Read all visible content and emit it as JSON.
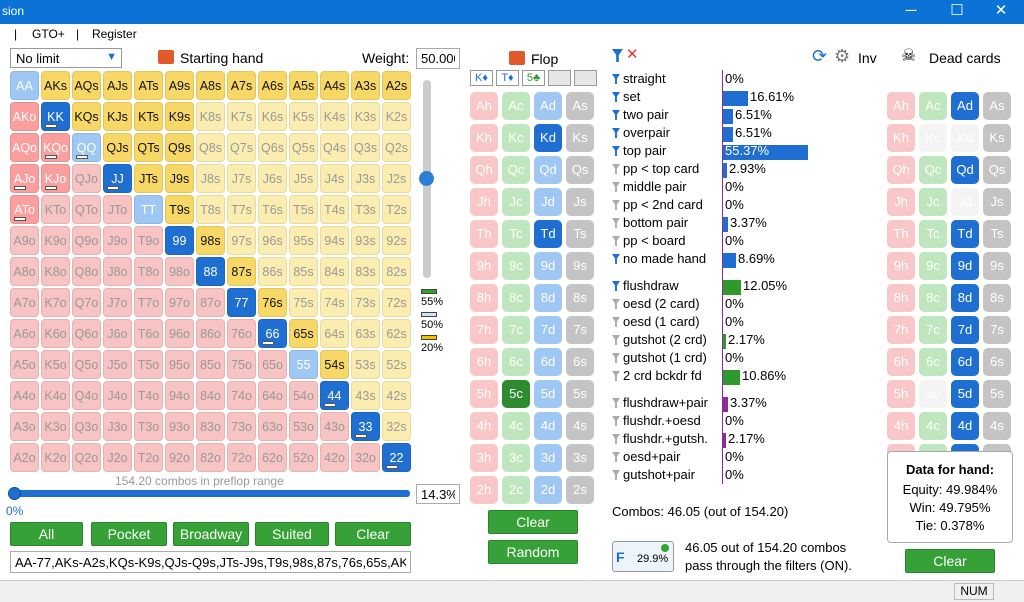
{
  "window": {
    "title_fragment": "sion",
    "minimize": "─",
    "maximize": "☐",
    "close": "✕"
  },
  "menu": {
    "items": [
      "|",
      "GTO+",
      "|",
      "Register"
    ]
  },
  "range_panel": {
    "game_type": "No limit",
    "starting_hand_label": "Starting hand",
    "weight_label": "Weight:",
    "weight_value": "50.000",
    "slider_labels": [
      "55%",
      "50%",
      "20%"
    ],
    "combos_caption": "154.20 combos in preflop range",
    "range_pct": "14.3%",
    "slider_left_value": "0%",
    "buttons": [
      "All",
      "Pocket",
      "Broadway",
      "Suited",
      "Clear"
    ],
    "range_text": "AA-77,AKs-A2s,KQs-K9s,QJs-Q9s,JTs-J9s,T9s,98s,87s,76s,65s,AKo-",
    "ranks": [
      "A",
      "K",
      "Q",
      "J",
      "T",
      "9",
      "8",
      "7",
      "6",
      "5",
      "4",
      "3",
      "2"
    ],
    "styles": [
      [
        "sell",
        "yl",
        "yl",
        "yl",
        "yl",
        "yl",
        "yl",
        "yl",
        "yl",
        "yl",
        "yl",
        "yl",
        "yl"
      ],
      [
        "selp",
        "sel",
        "yl",
        "yl",
        "yl",
        "yl",
        "yp",
        "yp",
        "yp",
        "yp",
        "yp",
        "yp",
        "yp"
      ],
      [
        "selp",
        "selp",
        "sell",
        "yl",
        "yl",
        "yl",
        "yp",
        "yp",
        "yp",
        "yp",
        "yp",
        "yp",
        "yp"
      ],
      [
        "selp",
        "selp",
        "pk",
        "sel",
        "yl",
        "yl",
        "yp",
        "yp",
        "yp",
        "yp",
        "yp",
        "yp",
        "yp"
      ],
      [
        "selp",
        "pk",
        "pk",
        "pk",
        "sell",
        "yl",
        "yp",
        "yp",
        "yp",
        "yp",
        "yp",
        "yp",
        "yp"
      ],
      [
        "pk",
        "pk",
        "pk",
        "pk",
        "pk",
        "sel",
        "yl",
        "yp",
        "yp",
        "yp",
        "yp",
        "yp",
        "yp"
      ],
      [
        "pk",
        "pk",
        "pk",
        "pk",
        "pk",
        "pk",
        "sel",
        "yl",
        "yp",
        "yp",
        "yp",
        "yp",
        "yp"
      ],
      [
        "pk",
        "pk",
        "pk",
        "pk",
        "pk",
        "pk",
        "pk",
        "sel",
        "yl",
        "yp",
        "yp",
        "yp",
        "yp"
      ],
      [
        "pk",
        "pk",
        "pk",
        "pk",
        "pk",
        "pk",
        "pk",
        "pk",
        "sel",
        "yl",
        "yp",
        "yp",
        "yp"
      ],
      [
        "pk",
        "pk",
        "pk",
        "pk",
        "pk",
        "pk",
        "pk",
        "pk",
        "pk",
        "sell",
        "yl",
        "yp",
        "yp"
      ],
      [
        "pk",
        "pk",
        "pk",
        "pk",
        "pk",
        "pk",
        "pk",
        "pk",
        "pk",
        "pk",
        "sel",
        "yp",
        "yp"
      ],
      [
        "pk",
        "pk",
        "pk",
        "pk",
        "pk",
        "pk",
        "pk",
        "pk",
        "pk",
        "pk",
        "pk",
        "sel",
        "yp"
      ],
      [
        "pk",
        "pk",
        "pk",
        "pk",
        "pk",
        "pk",
        "pk",
        "pk",
        "pk",
        "pk",
        "pk",
        "pk",
        "sel"
      ]
    ],
    "weight_indicators": [
      "KK",
      "QQ",
      "JJ",
      "KQo",
      "AJo",
      "KJo",
      "ATo",
      "66",
      "44",
      "33",
      "22"
    ]
  },
  "flop_panel": {
    "title": "Flop",
    "board_slots": [
      "K♦",
      "T♦",
      "5♣",
      "",
      ""
    ],
    "ranks": [
      "A",
      "K",
      "Q",
      "J",
      "T",
      "9",
      "8",
      "7",
      "6",
      "5",
      "4",
      "3",
      "2"
    ],
    "suits": [
      "h",
      "c",
      "d",
      "s"
    ],
    "selected": [
      "Kd",
      "Td",
      "5c"
    ],
    "clear": "Clear",
    "random": "Random"
  },
  "filters": {
    "inv_label": "Inv",
    "rows": [
      {
        "label": "straight",
        "value": "0%",
        "pct": 0,
        "color": "#1e6fd1",
        "active": true
      },
      {
        "label": "set",
        "value": "16.61%",
        "pct": 16.61,
        "color": "#1e6fd1",
        "active": true
      },
      {
        "label": "two pair",
        "value": "6.51%",
        "pct": 6.51,
        "color": "#1e6fd1",
        "active": true
      },
      {
        "label": "overpair",
        "value": "6.51%",
        "pct": 6.51,
        "color": "#1e6fd1",
        "active": true
      },
      {
        "label": "top pair",
        "value": "55.37%",
        "pct": 55.37,
        "color": "#1e6fd1",
        "active": true
      },
      {
        "label": "pp < top card",
        "value": "2.93%",
        "pct": 2.93,
        "color": "#1e6fd1",
        "active": false,
        "gear": true
      },
      {
        "label": "middle pair",
        "value": "0%",
        "pct": 0,
        "color": "#1e6fd1",
        "active": false
      },
      {
        "label": "pp < 2nd card",
        "value": "0%",
        "pct": 0,
        "color": "#1e6fd1",
        "active": false
      },
      {
        "label": "bottom pair",
        "value": "3.37%",
        "pct": 3.37,
        "color": "#1e6fd1",
        "active": false
      },
      {
        "label": "pp < board",
        "value": "0%",
        "pct": 0,
        "color": "#1e6fd1",
        "active": false
      },
      {
        "label": "no made hand",
        "value": "8.69%",
        "pct": 8.69,
        "color": "#1e6fd1",
        "active": true
      },
      {
        "label": "flushdraw",
        "value": "12.05%",
        "pct": 12.05,
        "color": "#2e9a2e",
        "active": true
      },
      {
        "label": "oesd (2 card)",
        "value": "0%",
        "pct": 0,
        "color": "#2e9a2e",
        "active": false
      },
      {
        "label": "oesd (1 card)",
        "value": "0%",
        "pct": 0,
        "color": "#2e9a2e",
        "active": false
      },
      {
        "label": "gutshot (2 crd)",
        "value": "2.17%",
        "pct": 2.17,
        "color": "#2e9a2e",
        "active": false
      },
      {
        "label": "gutshot (1 crd)",
        "value": "0%",
        "pct": 0,
        "color": "#2e9a2e",
        "active": false
      },
      {
        "label": "2 crd bckdr fd",
        "value": "10.86%",
        "pct": 10.86,
        "color": "#2e9a2e",
        "active": false
      },
      {
        "label": "flushdraw+pair",
        "value": "3.37%",
        "pct": 3.37,
        "color": "#8b2c9a",
        "active": false
      },
      {
        "label": "flushdr.+oesd",
        "value": "0%",
        "pct": 0,
        "color": "#8b2c9a",
        "active": false
      },
      {
        "label": "flushdr.+gutsh.",
        "value": "2.17%",
        "pct": 2.17,
        "color": "#8b2c9a",
        "active": false
      },
      {
        "label": "oesd+pair",
        "value": "0%",
        "pct": 0,
        "color": "#8b2c9a",
        "active": false
      },
      {
        "label": "gutshot+pair",
        "value": "0%",
        "pct": 0,
        "color": "#8b2c9a",
        "active": false
      }
    ],
    "combos_text": "Combos: 46.05 (out of 154.20)",
    "badge_pct": "29.9%",
    "pass_line1": "46.05 out of 154.20 combos",
    "pass_line2": "pass through the filters (ON)."
  },
  "dead_cards": {
    "title": "Dead cards",
    "selected": [
      "Ad",
      "Qd",
      "Td",
      "9d",
      "8d",
      "7d",
      "6d",
      "5d",
      "4d",
      "3d",
      "2d"
    ],
    "faded": [
      "Kd",
      "Kc",
      "Qd",
      "Jd",
      "Td",
      "5c"
    ],
    "data_title": "Data for hand:",
    "equity": "Equity: 49.984%",
    "win": "Win: 49.795%",
    "tie": "Tie: 0.378%",
    "clear": "Clear"
  },
  "status": {
    "num": "NUM"
  }
}
